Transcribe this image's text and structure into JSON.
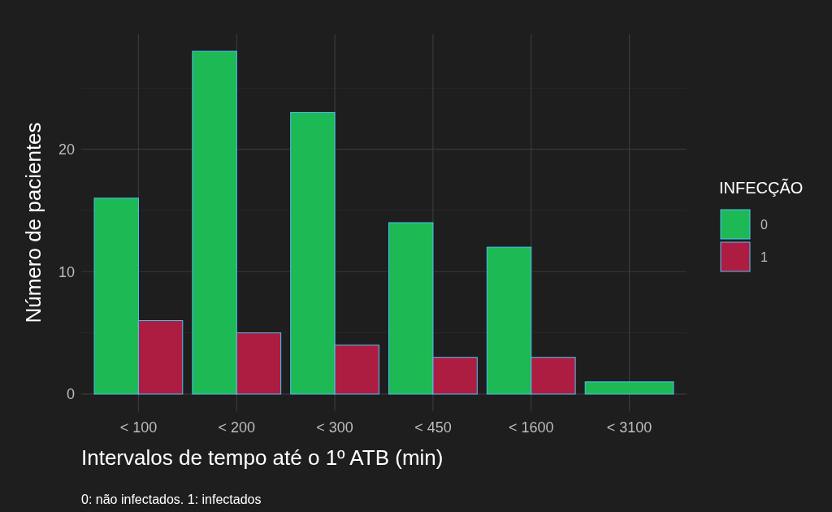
{
  "chart_data": {
    "type": "bar",
    "xlabel": "Intervalos de tempo até o 1º ATB (min)",
    "ylabel": "Número de pacientes",
    "legend_title": "INFECÇÃO",
    "categories": [
      "< 100",
      "< 200",
      "< 300",
      "< 450",
      "< 1600",
      "< 3100"
    ],
    "series": [
      {
        "name": "0",
        "color": "#1db954",
        "values": [
          16,
          28,
          23,
          14,
          12,
          1
        ]
      },
      {
        "name": "1",
        "color": "#ad1d42",
        "values": [
          6,
          5,
          4,
          3,
          3,
          null
        ]
      }
    ],
    "ylim": [
      -1.4,
      29.4
    ],
    "yticks": [
      0,
      {
        "value": 5,
        "label": null
      },
      10,
      {
        "value": 15,
        "label": null
      },
      20,
      {
        "value": 25,
        "label": null
      }
    ],
    "grid": true,
    "legend": "right",
    "annotations": [
      "0: não infectados. 1: infectados"
    ]
  }
}
